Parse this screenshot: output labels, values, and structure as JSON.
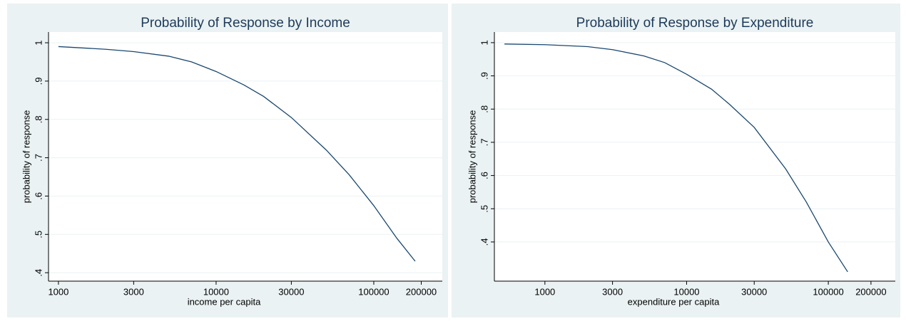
{
  "chart_data": [
    {
      "type": "line",
      "title": "Probability of Response by Income",
      "x_label": "income per capita",
      "y_label": "probability of response",
      "xscale": "log",
      "grid": true,
      "color": "#1a476f",
      "x": [
        1000,
        2000,
        3000,
        5000,
        7000,
        10000,
        15000,
        20000,
        30000,
        50000,
        70000,
        100000,
        140000,
        183000
      ],
      "values": [
        0.99,
        0.983,
        0.977,
        0.965,
        0.95,
        0.925,
        0.89,
        0.86,
        0.805,
        0.72,
        0.655,
        0.575,
        0.49,
        0.43
      ],
      "xlim": [
        865,
        272000
      ],
      "xticks": [
        1000,
        3000,
        10000,
        30000,
        100000,
        200000
      ],
      "ylim": [
        0.378,
        1.028
      ],
      "yticks": [
        {
          "value": 0.4,
          "label": ".4"
        },
        {
          "value": 0.5,
          "label": ".5"
        },
        {
          "value": 0.6,
          "label": ".6"
        },
        {
          "value": 0.7,
          "label": ".7"
        },
        {
          "value": 0.8,
          "label": ".8"
        },
        {
          "value": 0.9,
          "label": ".9"
        },
        1
      ]
    },
    {
      "type": "line",
      "title": "Probability of Response by Expenditure",
      "x_label": "expenditure per capita",
      "y_label": "probability of response",
      "xscale": "log",
      "grid": true,
      "color": "#1a476f",
      "x": [
        518,
        1000,
        2000,
        3000,
        5000,
        7000,
        10000,
        15000,
        20000,
        30000,
        50000,
        70000,
        100000,
        137000
      ],
      "values": [
        0.996,
        0.994,
        0.988,
        0.979,
        0.96,
        0.94,
        0.905,
        0.86,
        0.815,
        0.745,
        0.62,
        0.52,
        0.4,
        0.31
      ],
      "xlim": [
        440,
        297000
      ],
      "xticks": [
        1000,
        3000,
        10000,
        30000,
        100000,
        200000
      ],
      "ylim": [
        0.282,
        1.032
      ],
      "yticks": [
        {
          "value": 0.4,
          "label": ".4"
        },
        {
          "value": 0.5,
          "label": ".5"
        },
        {
          "value": 0.6,
          "label": ".6"
        },
        {
          "value": 0.7,
          "label": ".7"
        },
        {
          "value": 0.8,
          "label": ".8"
        },
        {
          "value": 0.9,
          "label": ".9"
        },
        1
      ]
    }
  ]
}
